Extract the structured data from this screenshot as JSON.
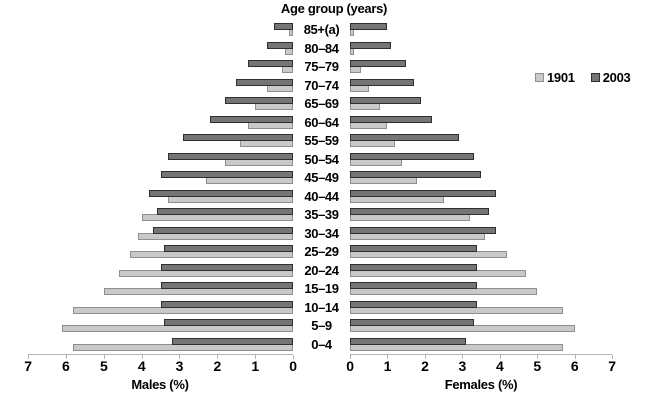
{
  "title": "Age group (years)",
  "legend": {
    "items": [
      {
        "label": "1901",
        "color": "#c9c9c9",
        "border": "#8f8f8f"
      },
      {
        "label": "2003",
        "color": "#757575",
        "border": "#2f2f2f"
      }
    ]
  },
  "axes": {
    "left_title": "Males (%)",
    "right_title": "Females (%)",
    "left_ticks": [
      7,
      6,
      5,
      4,
      3,
      2,
      1,
      0
    ],
    "right_ticks": [
      0,
      1,
      2,
      3,
      4,
      5,
      6,
      7
    ],
    "max": 7
  },
  "colors": {
    "series_1901": "#c9c9c9",
    "series_1901_border": "#8f8f8f",
    "series_2003": "#757575",
    "series_2003_border": "#2f2f2f",
    "axis": "#b3b3b3",
    "text": "#000000",
    "background": "#ffffff"
  },
  "chart_data": {
    "type": "bar",
    "subtype": "population_pyramid",
    "orientation": "horizontal",
    "title": "Age group (years)",
    "xlabel_left": "Males (%)",
    "xlabel_right": "Females (%)",
    "xlim": [
      0,
      7
    ],
    "grid": false,
    "legend_position": "upper right",
    "age_groups": [
      "85+(a)",
      "80–84",
      "75–79",
      "70–74",
      "65–69",
      "60–64",
      "55–59",
      "50–54",
      "45–49",
      "40–44",
      "35–39",
      "30–34",
      "25–29",
      "20–24",
      "15–19",
      "10–14",
      "5–9",
      "0–4"
    ],
    "series": [
      {
        "name": "1901",
        "side": "males",
        "values": [
          0.1,
          0.2,
          0.3,
          0.7,
          1.0,
          1.2,
          1.4,
          1.8,
          2.3,
          3.3,
          4.0,
          4.1,
          4.3,
          4.6,
          5.0,
          5.8,
          6.1,
          5.8
        ]
      },
      {
        "name": "2003",
        "side": "males",
        "values": [
          0.5,
          0.7,
          1.2,
          1.5,
          1.8,
          2.2,
          2.9,
          3.3,
          3.5,
          3.8,
          3.6,
          3.7,
          3.4,
          3.5,
          3.5,
          3.5,
          3.4,
          3.2
        ]
      },
      {
        "name": "1901",
        "side": "females",
        "values": [
          0.1,
          0.1,
          0.3,
          0.5,
          0.8,
          1.0,
          1.2,
          1.4,
          1.8,
          2.5,
          3.2,
          3.6,
          4.2,
          4.7,
          5.0,
          5.7,
          6.0,
          5.7
        ]
      },
      {
        "name": "2003",
        "side": "females",
        "values": [
          1.0,
          1.1,
          1.5,
          1.7,
          1.9,
          2.2,
          2.9,
          3.3,
          3.5,
          3.9,
          3.7,
          3.9,
          3.4,
          3.4,
          3.4,
          3.4,
          3.3,
          3.1
        ]
      }
    ]
  }
}
